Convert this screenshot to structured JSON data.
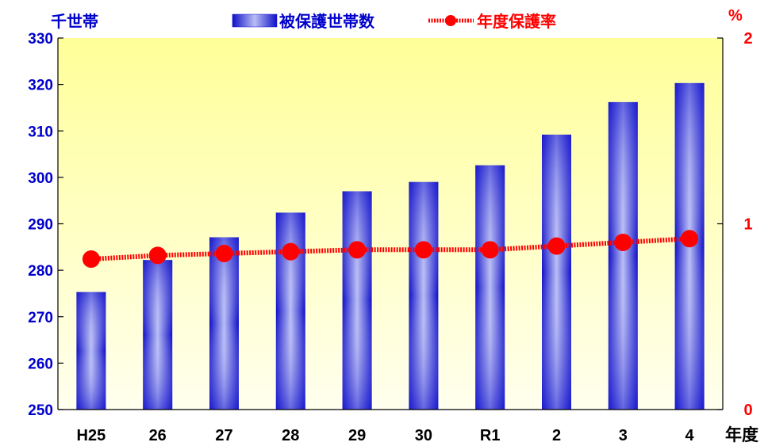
{
  "chart_data": {
    "type": "bar",
    "categories": [
      "H25",
      "26",
      "27",
      "28",
      "29",
      "30",
      "R1",
      "2",
      "3",
      "4"
    ],
    "series": [
      {
        "name": "被保護世帯数",
        "type": "bar",
        "axis": "left",
        "values": [
          275.3,
          282.2,
          287.1,
          292.4,
          297.0,
          299.0,
          302.6,
          309.2,
          316.2,
          320.3
        ]
      },
      {
        "name": "年度保護率",
        "type": "line",
        "axis": "right",
        "values": [
          0.81,
          0.83,
          0.84,
          0.85,
          0.86,
          0.86,
          0.86,
          0.88,
          0.9,
          0.92
        ]
      }
    ],
    "y_left": {
      "unit": "千世帯",
      "min": 250,
      "max": 330,
      "ticks": [
        250,
        260,
        270,
        280,
        290,
        300,
        310,
        320,
        330
      ]
    },
    "y_right": {
      "unit": "%",
      "min": 0,
      "max": 2,
      "ticks": [
        0,
        1,
        2
      ]
    },
    "x_unit": "年度",
    "legend_position": "top-center",
    "grid": false,
    "colors": {
      "bar": "#1f1fd6",
      "bar_highlight": "#b8bdf5",
      "line": "#ff0000",
      "plot_top": "#ffff99",
      "plot_bottom": "#ffffee"
    }
  }
}
